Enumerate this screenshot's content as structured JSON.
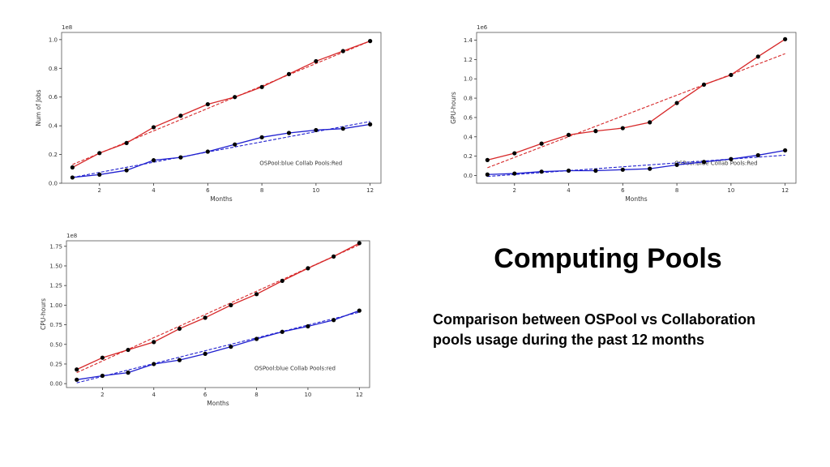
{
  "slide": {
    "title": "Computing Pools",
    "subtitle": "Comparison between OSPool vs Collaboration pools usage during the past 12 months"
  },
  "chart_data": [
    {
      "type": "line",
      "xlabel": "Months",
      "ylabel": "Num of Jobs",
      "exponent_label": "1e8",
      "annotation": "OSPool:blue Collab Pools:Red",
      "x": [
        1,
        2,
        3,
        4,
        5,
        6,
        7,
        8,
        9,
        10,
        11,
        12
      ],
      "xticks": [
        2,
        4,
        6,
        8,
        10,
        12
      ],
      "yticks": [
        0.0,
        0.2,
        0.4,
        0.6,
        0.8,
        1.0
      ],
      "ytick_labels": [
        "0.0",
        "0.2",
        "0.4",
        "0.6",
        "0.8",
        "1.0"
      ],
      "xlim": [
        0.6,
        12.4
      ],
      "ylim": [
        0,
        1.05
      ],
      "series": [
        {
          "color": "#d62728",
          "values": [
            0.11,
            0.21,
            0.28,
            0.39,
            0.47,
            0.55,
            0.6,
            0.67,
            0.76,
            0.85,
            0.92,
            0.99
          ],
          "trend": [
            0.13,
            0.99
          ]
        },
        {
          "color": "#1f1fcf",
          "values": [
            0.04,
            0.06,
            0.09,
            0.16,
            0.18,
            0.22,
            0.27,
            0.32,
            0.35,
            0.37,
            0.38,
            0.41
          ],
          "trend": [
            0.04,
            0.43
          ]
        }
      ]
    },
    {
      "type": "line",
      "xlabel": "Months",
      "ylabel": "GPU-hours",
      "exponent_label": "1e6",
      "annotation": "OSPool:Blue Collab Pools:Red",
      "x": [
        1,
        2,
        3,
        4,
        5,
        6,
        7,
        8,
        9,
        10,
        11,
        12
      ],
      "xticks": [
        2,
        4,
        6,
        8,
        10,
        12
      ],
      "yticks": [
        0.0,
        0.2,
        0.4,
        0.6,
        0.8,
        1.0,
        1.2,
        1.4
      ],
      "ytick_labels": [
        "0.0",
        "0.2",
        "0.4",
        "0.6",
        "0.8",
        "1.0",
        "1.2",
        "1.4"
      ],
      "xlim": [
        0.6,
        12.4
      ],
      "ylim": [
        -0.08,
        1.48
      ],
      "series": [
        {
          "color": "#d62728",
          "values": [
            0.16,
            0.23,
            0.33,
            0.42,
            0.46,
            0.49,
            0.55,
            0.75,
            0.94,
            1.04,
            1.23,
            1.41
          ],
          "trend": [
            0.08,
            1.26
          ]
        },
        {
          "color": "#1f1fcf",
          "values": [
            0.01,
            0.02,
            0.04,
            0.05,
            0.05,
            0.06,
            0.07,
            0.11,
            0.14,
            0.17,
            0.21,
            0.26
          ],
          "trend": [
            -0.01,
            0.21
          ]
        }
      ]
    },
    {
      "type": "line",
      "xlabel": "Months",
      "ylabel": "CPU-hours",
      "exponent_label": "1e8",
      "annotation": "OSPool:blue Collab Pools:red",
      "x": [
        1,
        2,
        3,
        4,
        5,
        6,
        7,
        8,
        9,
        10,
        11,
        12
      ],
      "xticks": [
        2,
        4,
        6,
        8,
        10,
        12
      ],
      "yticks": [
        0.0,
        0.25,
        0.5,
        0.75,
        1.0,
        1.25,
        1.5,
        1.75
      ],
      "ytick_labels": [
        "0.00",
        "0.25",
        "0.50",
        "0.75",
        "1.00",
        "1.25",
        "1.50",
        "1.75"
      ],
      "xlim": [
        0.6,
        12.4
      ],
      "ylim": [
        -0.05,
        1.82
      ],
      "series": [
        {
          "color": "#d62728",
          "values": [
            0.18,
            0.33,
            0.43,
            0.53,
            0.7,
            0.84,
            1.0,
            1.14,
            1.31,
            1.47,
            1.62,
            1.79
          ],
          "trend": [
            0.14,
            1.77
          ]
        },
        {
          "color": "#1f1fcf",
          "values": [
            0.05,
            0.1,
            0.14,
            0.25,
            0.3,
            0.38,
            0.47,
            0.57,
            0.66,
            0.73,
            0.81,
            0.93
          ],
          "trend": [
            0.01,
            0.91
          ]
        }
      ]
    }
  ]
}
